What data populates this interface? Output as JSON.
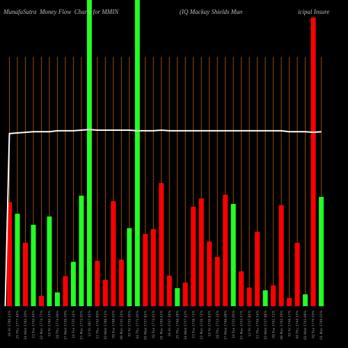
{
  "chart_data": {
    "type": "bar",
    "title": "MunafaSutra  Money Flow  Charts for MMIN",
    "subtitle_parts": [
      "(IQ Mackay Shields Mun",
      "icipal Insure"
    ],
    "xlabel": "",
    "ylabel": "",
    "ylim": [
      0,
      100
    ],
    "grid": true,
    "categories": [
      "26 Fri 1786.23%",
      "25 Thu 1777.46%",
      "24 Wed 1784.20%",
      "23 Tue 1742.46%",
      "22 Mon 1774.77%",
      "19 Fri 1760.24%",
      "18 Thu 1774.09%",
      "17 Wed 1726.29%",
      "16 Tue 1725.14%",
      "15 Mon 1772.93%",
      "12 Fri 1817.91%",
      "11 Thu 1742.89%",
      "10 Wed 1786.51%",
      "09 Tue 1768.01%",
      "08 Mon 1741.24%",
      "05 Fri 1759.95%",
      "04 Thu 1771.05%",
      "03 Wed 1727.81%",
      "02 Tue 1774.61%",
      "01 Mon 1769.41%",
      "26 Fri 1747.26%",
      "25 Thu 1766.28%",
      "24 Wed 1757.43%",
      "23 Tue 1736.72%",
      "22 Mon 1736.72%",
      "19 Fri 1730.83%",
      "18 Thu 1712.24%",
      "17 Wed 1766.68%",
      "16 Tue 1721.90%",
      "15 Mon 1743.57%",
      "12 Fri 1727.85%",
      "11 Thu 1756.54%",
      "10 Wed 1727.88%",
      "09 Tue 1761.51%",
      "08 Mon 1762.29%",
      "05 Fri 1746.17%",
      "04 Thu 1744.32%",
      "03 Wed 1703.68%",
      "02 Tue 1770.50%",
      "01 Mon 1769.01%"
    ],
    "series": [
      {
        "type": "bar",
        "values": [
          34,
          30.2,
          20.7,
          26.6,
          3.4,
          29.3,
          4.5,
          9.8,
          14.5,
          36.1,
          100,
          14.8,
          8.6,
          34.3,
          15.2,
          25.5,
          100,
          23.6,
          25.2,
          40.2,
          10,
          5.9,
          7.7,
          32.5,
          35.2,
          21.1,
          16.1,
          36.4,
          33.4,
          11.4,
          6.1,
          24.3,
          5.2,
          6.8,
          33,
          2.7,
          20.7,
          3.9,
          94.3,
          35.7
        ],
        "colors": [
          "#ff0000",
          "#22ff22",
          "#ff0000",
          "#22ff22",
          "#ff0000",
          "#22ff22",
          "#22ff22",
          "#ff0000",
          "#22ff22",
          "#22ff22",
          "#22ff22",
          "#ff0000",
          "#ff0000",
          "#ff0000",
          "#ff0000",
          "#22ff22",
          "#22ff22",
          "#ff0000",
          "#ff0000",
          "#ff0000",
          "#ff0000",
          "#22ff22",
          "#ff0000",
          "#ff0000",
          "#ff0000",
          "#ff0000",
          "#ff0000",
          "#ff0000",
          "#22ff22",
          "#ff0000",
          "#ff0000",
          "#ff0000",
          "#22ff22",
          "#ff0000",
          "#ff0000",
          "#ff0000",
          "#ff0000",
          "#22ff22",
          "#ff0000",
          "#22ff22"
        ]
      },
      {
        "type": "line",
        "values": [
          56.4,
          56.6,
          56.8,
          57.0,
          57.0,
          57.0,
          57.3,
          57.3,
          57.3,
          57.5,
          57.7,
          57.5,
          57.5,
          57.5,
          57.5,
          57.5,
          57.3,
          57.3,
          57.3,
          57.5,
          57.3,
          57.3,
          57.3,
          57.3,
          57.3,
          57.3,
          57.3,
          57.3,
          57.3,
          57.3,
          57.3,
          57.3,
          57.3,
          57.3,
          57.3,
          57.0,
          57.0,
          57.0,
          56.8,
          57.0
        ],
        "color": "#ffffff"
      }
    ]
  },
  "colors": {
    "background": "#000000",
    "grid": "#9a4f06",
    "line": "#ffffff",
    "title_text": "#bdbdbd",
    "tick_text": "#9a9a9a"
  }
}
